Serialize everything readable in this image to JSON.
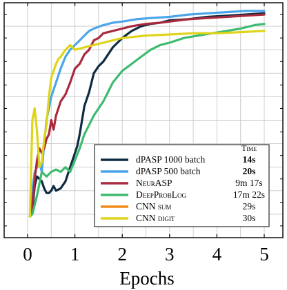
{
  "chart_data": {
    "type": "line",
    "xlabel": "Epochs",
    "ylabel": "",
    "title": "",
    "xlim": [
      -0.45,
      5.1
    ],
    "ylim": [
      0.0,
      1.0
    ],
    "grid": true,
    "x_ticks": [
      0,
      1,
      2,
      3,
      4,
      5
    ],
    "x_tick_labels": [
      "0",
      "1",
      "2",
      "3",
      "4",
      "5"
    ],
    "legend": {
      "placement": "bottom-right",
      "column_header": "Time",
      "entries": [
        {
          "label": "dPASP 1000 batch",
          "time": "14s",
          "time_bold": true
        },
        {
          "label": "dPASP 500 batch",
          "time": "20s",
          "time_bold": true
        },
        {
          "label": "NeurASP",
          "time": "9m 17s",
          "time_bold": false
        },
        {
          "label": "DeepProbLog",
          "time": "17m 22s",
          "time_bold": false
        },
        {
          "label": "CNN sum",
          "time": "29s",
          "time_bold": false
        },
        {
          "label": "CNN digit",
          "time": "30s",
          "time_bold": false
        }
      ]
    },
    "series": [
      {
        "name": "dPASP 1000 batch",
        "color": "#0d2b42",
        "x": [
          0.05,
          0.1,
          0.15,
          0.2,
          0.25,
          0.3,
          0.35,
          0.4,
          0.45,
          0.5,
          0.55,
          0.6,
          0.7,
          0.8,
          0.9,
          1.0,
          1.05,
          1.1,
          1.2,
          1.3,
          1.4,
          1.5,
          1.6,
          1.8,
          2.0,
          2.2,
          2.4,
          2.6,
          2.8,
          3.0,
          3.4,
          3.8,
          4.2,
          4.6,
          5.0
        ],
        "y": [
          0.09,
          0.12,
          0.22,
          0.26,
          0.25,
          0.24,
          0.21,
          0.19,
          0.19,
          0.2,
          0.22,
          0.2,
          0.21,
          0.24,
          0.3,
          0.36,
          0.39,
          0.44,
          0.56,
          0.62,
          0.7,
          0.73,
          0.75,
          0.81,
          0.85,
          0.88,
          0.9,
          0.91,
          0.915,
          0.925,
          0.93,
          0.94,
          0.945,
          0.95,
          0.955
        ]
      },
      {
        "name": "dPASP 500 batch",
        "color": "#4aa5ea",
        "x": [
          0.05,
          0.1,
          0.15,
          0.2,
          0.25,
          0.3,
          0.35,
          0.4,
          0.5,
          0.6,
          0.7,
          0.8,
          0.9,
          1.0,
          1.1,
          1.2,
          1.3,
          1.4,
          1.6,
          1.8,
          2.0,
          2.3,
          2.6,
          3.0,
          3.4,
          3.8,
          4.2,
          4.6,
          5.0
        ],
        "y": [
          0.09,
          0.2,
          0.28,
          0.3,
          0.32,
          0.28,
          0.4,
          0.5,
          0.6,
          0.66,
          0.72,
          0.77,
          0.8,
          0.82,
          0.84,
          0.86,
          0.88,
          0.89,
          0.905,
          0.915,
          0.92,
          0.93,
          0.935,
          0.94,
          0.95,
          0.955,
          0.96,
          0.965,
          0.965
        ]
      },
      {
        "name": "NeurASP",
        "color": "#a82a3e",
        "x": [
          0.05,
          0.1,
          0.15,
          0.2,
          0.25,
          0.3,
          0.35,
          0.4,
          0.45,
          0.5,
          0.55,
          0.6,
          0.7,
          0.8,
          0.9,
          1.0,
          1.1,
          1.2,
          1.3,
          1.4,
          1.5,
          1.6,
          1.8,
          2.0,
          2.2,
          2.5,
          2.8,
          3.0,
          3.4,
          3.8,
          4.2,
          4.6,
          5.0
        ],
        "y": [
          0.09,
          0.14,
          0.25,
          0.33,
          0.38,
          0.36,
          0.38,
          0.42,
          0.44,
          0.5,
          0.46,
          0.52,
          0.58,
          0.61,
          0.66,
          0.72,
          0.74,
          0.78,
          0.8,
          0.84,
          0.85,
          0.87,
          0.88,
          0.89,
          0.9,
          0.91,
          0.915,
          0.92,
          0.93,
          0.935,
          0.94,
          0.945,
          0.95
        ]
      },
      {
        "name": "DeepProbLog",
        "color": "#3dbb6e",
        "x": [
          0.05,
          0.1,
          0.2,
          0.3,
          0.4,
          0.5,
          0.6,
          0.7,
          0.8,
          0.9,
          1.0,
          1.1,
          1.2,
          1.3,
          1.4,
          1.5,
          1.6,
          1.7,
          1.8,
          2.0,
          2.2,
          2.4,
          2.6,
          2.8,
          3.0,
          3.3,
          3.6,
          3.9,
          4.2,
          4.5,
          4.8,
          5.0
        ],
        "y": [
          0.09,
          0.1,
          0.18,
          0.28,
          0.26,
          0.28,
          0.29,
          0.28,
          0.3,
          0.28,
          0.33,
          0.38,
          0.44,
          0.48,
          0.52,
          0.55,
          0.58,
          0.62,
          0.66,
          0.71,
          0.74,
          0.77,
          0.8,
          0.82,
          0.83,
          0.85,
          0.86,
          0.87,
          0.88,
          0.89,
          0.905,
          0.91
        ]
      },
      {
        "name": "CNN sum",
        "color": "#f08c1a",
        "x": [],
        "y": []
      },
      {
        "name": "CNN digit",
        "color": "#dfd418",
        "x": [
          0.05,
          0.1,
          0.15,
          0.2,
          0.25,
          0.3,
          0.35,
          0.4,
          0.45,
          0.5,
          0.55,
          0.6,
          0.65,
          0.7,
          0.8,
          0.9,
          1.0,
          1.2,
          1.4,
          1.6,
          1.8,
          2.0,
          2.5,
          3.0,
          3.5,
          4.0,
          4.5,
          5.0
        ],
        "y": [
          0.09,
          0.5,
          0.55,
          0.45,
          0.3,
          0.32,
          0.42,
          0.48,
          0.6,
          0.68,
          0.71,
          0.74,
          0.76,
          0.77,
          0.8,
          0.82,
          0.8,
          0.81,
          0.82,
          0.83,
          0.84,
          0.85,
          0.86,
          0.865,
          0.87,
          0.87,
          0.875,
          0.88
        ]
      }
    ]
  }
}
